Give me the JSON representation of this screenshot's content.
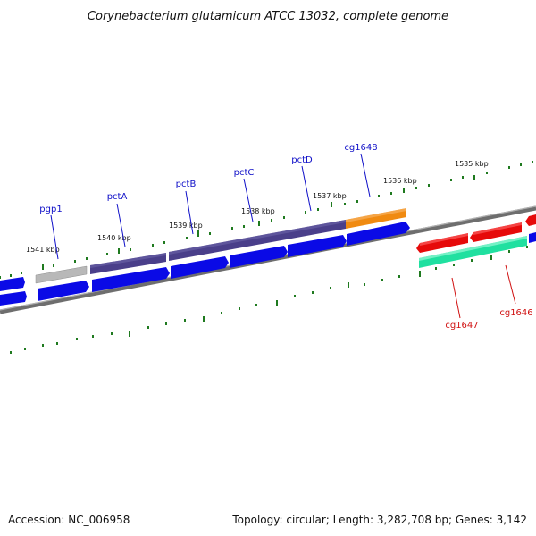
{
  "title": "Corynebacterium glutamicum ATCC 13032, complete genome",
  "accession": "Accession: NC_006958",
  "summary": "Topology: circular; Length: 3,282,708 bp; Genes: 3,142",
  "ticks": [
    "1541 kbp",
    "1540 kbp",
    "1539 kbp",
    "1538 kbp",
    "1537 kbp",
    "1536 kbp",
    "1535 kbp"
  ],
  "gene_labels": {
    "pgp1": "pgp1",
    "pctA": "pctA",
    "pctB": "pctB",
    "pctC": "pctC",
    "pctD": "pctD",
    "cg1648": "cg1648",
    "cg1647": "cg1647",
    "cg1646": "cg1646"
  },
  "colors": {
    "backbone": "#7a7a7a",
    "tick": "#1f7a1f",
    "gene_blue": "#0a0ae6",
    "operon_purple": "#4a3f8a",
    "pseudo_grey": "#b8b8b8",
    "highlight_orange": "#f08a10",
    "reverse_red": "#e60a0a",
    "rna_green": "#20e0a0",
    "label_blue": "#1010c8",
    "label_red": "#d01010"
  }
}
